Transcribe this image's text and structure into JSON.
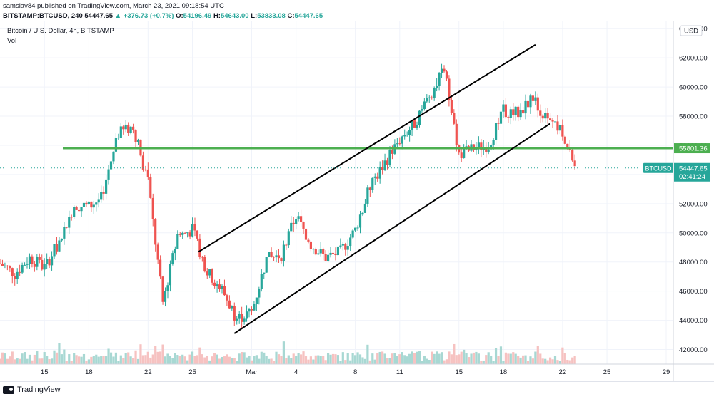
{
  "header": {
    "line1": "samslav84 published on TradingView.com, March 23, 2021 09:18:54 UTC",
    "symbol": "BITSTAMP:BTCUSD, 240",
    "last": "54447.65",
    "change": "+376.73 (+0.7%)",
    "o_label": "O:",
    "o_value": "54196.49",
    "h_label": "H:",
    "h_value": "54643.00",
    "l_label": "L:",
    "l_value": "53833.08",
    "c_label": "C:",
    "c_value": "54447.65"
  },
  "footer": {
    "brand": "TradingView"
  },
  "chart_data": {
    "type": "candlestick",
    "title": "Bitcoin / U.S. Dollar, 4h, BITSTAMP",
    "subtitle": "Vol",
    "currency": "USD",
    "x_tick_labels": [
      "15",
      "18",
      "22",
      "25",
      "Mar",
      "4",
      "8",
      "11",
      "15",
      "18",
      "22",
      "25",
      "29"
    ],
    "y_tick_values": [
      42000,
      44000,
      46000,
      48000,
      50000,
      52000,
      54000,
      56000,
      58000,
      60000,
      62000,
      64000
    ],
    "y_tick_labels": [
      "42000.00",
      "44000.00",
      "46000.00",
      "48000.00",
      "50000.00",
      "52000.00",
      "54000.00",
      "56000.00",
      "58000.00",
      "60000.00",
      "62000.00",
      "64000.00"
    ],
    "ylim": [
      41000,
      64500
    ],
    "date_range": [
      "2021-02-12",
      "2021-03-23"
    ],
    "price_path": [
      [
        "2021-02-12",
        47900
      ],
      [
        "2021-02-13",
        47200
      ],
      [
        "2021-02-14",
        48300
      ],
      [
        "2021-02-15",
        47600
      ],
      [
        "2021-02-16",
        49400
      ],
      [
        "2021-02-17",
        51900
      ],
      [
        "2021-02-18",
        51800
      ],
      [
        "2021-02-19",
        52500
      ],
      [
        "2021-02-20",
        56800
      ],
      [
        "2021-02-21",
        57300
      ],
      [
        "2021-02-22",
        53500
      ],
      [
        "2021-02-23",
        45200
      ],
      [
        "2021-02-24",
        49800
      ],
      [
        "2021-02-25",
        50200
      ],
      [
        "2021-02-26",
        47300
      ],
      [
        "2021-02-27",
        46100
      ],
      [
        "2021-02-28",
        44100
      ],
      [
        "2021-03-01",
        44600
      ],
      [
        "2021-03-02",
        48200
      ],
      [
        "2021-03-03",
        48500
      ],
      [
        "2021-03-04",
        51200
      ],
      [
        "2021-03-05",
        49200
      ],
      [
        "2021-03-06",
        48300
      ],
      [
        "2021-03-07",
        48700
      ],
      [
        "2021-03-08",
        50200
      ],
      [
        "2021-03-09",
        53200
      ],
      [
        "2021-03-10",
        54800
      ],
      [
        "2021-03-11",
        56400
      ],
      [
        "2021-03-12",
        57500
      ],
      [
        "2021-03-13",
        59400
      ],
      [
        "2021-03-14",
        61200
      ],
      [
        "2021-03-15",
        55400
      ],
      [
        "2021-03-16",
        55800
      ],
      [
        "2021-03-17",
        56000
      ],
      [
        "2021-03-18",
        58400
      ],
      [
        "2021-03-19",
        58200
      ],
      [
        "2021-03-20",
        59300
      ],
      [
        "2021-03-21",
        57600
      ],
      [
        "2021-03-22",
        56900
      ],
      [
        "2021-03-23",
        54447.65
      ]
    ],
    "trend_lines": [
      {
        "from": [
          "2021-02-25T10:00",
          48700
        ],
        "to": [
          "2021-03-20T04:00",
          62900
        ]
      },
      {
        "from": [
          "2021-02-27T20:00",
          43100
        ],
        "to": [
          "2021-03-21T04:00",
          57500
        ]
      }
    ],
    "horizontal_level": {
      "value": 55801.36,
      "label": "55801.36",
      "color": "#4caf50"
    },
    "last_price": {
      "symbol_label": "BTCUSD",
      "value": "54447.65",
      "countdown": "02:41:24",
      "color": "#26a69a"
    },
    "colors": {
      "up": "#26a69a",
      "down": "#ef5350",
      "up_vol": "#a8d8d3",
      "down_vol": "#f6c2c1"
    }
  }
}
